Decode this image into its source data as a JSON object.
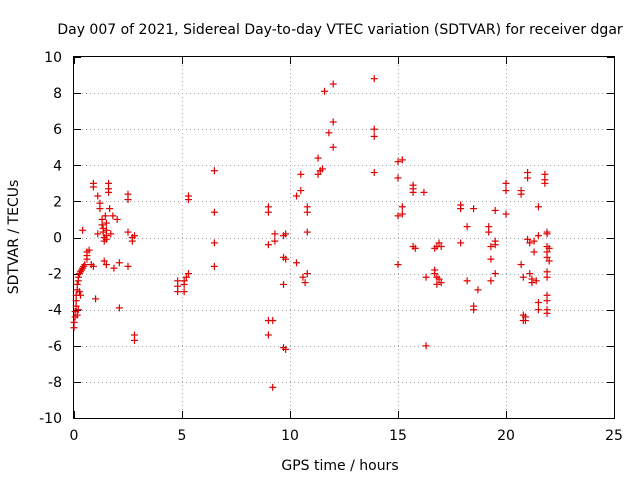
{
  "chart_data": {
    "type": "scatter",
    "title": "Day 007 of 2021, Sidereal Day-to-day VTEC variation (SDTVAR) for receiver dgar",
    "xlabel": "GPS time / hours",
    "ylabel": "SDTVAR / TECUs",
    "xlim": [
      0,
      25
    ],
    "ylim": [
      -10,
      10
    ],
    "xticks": [
      0,
      5,
      10,
      15,
      20,
      25
    ],
    "yticks": [
      -10,
      -8,
      -6,
      -4,
      -2,
      0,
      2,
      4,
      6,
      8,
      10
    ],
    "grid": true,
    "marker": "plus",
    "color": "#e00000",
    "series": [
      {
        "name": "SDTVAR",
        "points": [
          [
            0.0,
            -5.0
          ],
          [
            0.0,
            -4.7
          ],
          [
            0.05,
            -4.4
          ],
          [
            0.05,
            -4.1
          ],
          [
            0.1,
            -3.8
          ],
          [
            0.1,
            -3.5
          ],
          [
            0.1,
            -3.2
          ],
          [
            0.15,
            -2.9
          ],
          [
            0.15,
            -2.6
          ],
          [
            0.2,
            -2.4
          ],
          [
            0.2,
            -2.2
          ],
          [
            0.25,
            -2.0
          ],
          [
            0.3,
            -1.9
          ],
          [
            0.35,
            -1.8
          ],
          [
            0.4,
            -1.7
          ],
          [
            0.45,
            -1.6
          ],
          [
            0.5,
            -1.5
          ],
          [
            0.25,
            -3.0
          ],
          [
            0.3,
            -3.2
          ],
          [
            0.2,
            -4.0
          ],
          [
            0.15,
            -4.3
          ],
          [
            0.4,
            0.4
          ],
          [
            0.6,
            -1.2
          ],
          [
            0.6,
            -1.0
          ],
          [
            0.6,
            -0.8
          ],
          [
            0.7,
            -0.7
          ],
          [
            0.8,
            -1.5
          ],
          [
            0.9,
            3.0
          ],
          [
            0.9,
            2.8
          ],
          [
            0.9,
            -1.6
          ],
          [
            1.0,
            -3.4
          ],
          [
            1.1,
            2.3
          ],
          [
            1.1,
            0.2
          ],
          [
            1.2,
            1.9
          ],
          [
            1.2,
            1.6
          ],
          [
            1.3,
            1.0
          ],
          [
            1.3,
            0.7
          ],
          [
            1.35,
            0.5
          ],
          [
            1.35,
            0.3
          ],
          [
            1.4,
            0.0
          ],
          [
            1.4,
            -0.2
          ],
          [
            1.45,
            1.2
          ],
          [
            1.5,
            0.8
          ],
          [
            1.5,
            0.4
          ],
          [
            1.5,
            0.1
          ],
          [
            1.5,
            -0.1
          ],
          [
            1.4,
            -1.3
          ],
          [
            1.5,
            -1.5
          ],
          [
            1.6,
            3.0
          ],
          [
            1.6,
            2.7
          ],
          [
            1.6,
            2.5
          ],
          [
            1.65,
            1.6
          ],
          [
            1.7,
            0.2
          ],
          [
            1.8,
            1.2
          ],
          [
            1.85,
            -1.7
          ],
          [
            2.0,
            1.0
          ],
          [
            2.1,
            -3.9
          ],
          [
            2.1,
            -1.4
          ],
          [
            2.5,
            2.4
          ],
          [
            2.5,
            2.1
          ],
          [
            2.5,
            0.3
          ],
          [
            2.5,
            -1.6
          ],
          [
            2.7,
            0.0
          ],
          [
            2.7,
            -0.2
          ],
          [
            2.8,
            0.1
          ],
          [
            2.8,
            -5.4
          ],
          [
            2.8,
            -5.7
          ],
          [
            4.8,
            -2.4
          ],
          [
            4.8,
            -2.7
          ],
          [
            4.8,
            -3.0
          ],
          [
            5.1,
            -2.4
          ],
          [
            5.1,
            -2.6
          ],
          [
            5.1,
            -3.0
          ],
          [
            5.2,
            -2.2
          ],
          [
            5.3,
            2.3
          ],
          [
            5.3,
            2.1
          ],
          [
            5.3,
            -2.0
          ],
          [
            6.5,
            3.7
          ],
          [
            6.5,
            1.4
          ],
          [
            6.5,
            -0.3
          ],
          [
            6.5,
            -1.6
          ],
          [
            9.0,
            1.7
          ],
          [
            9.0,
            1.4
          ],
          [
            9.0,
            -0.4
          ],
          [
            9.0,
            -4.6
          ],
          [
            9.0,
            -5.4
          ],
          [
            9.2,
            -4.6
          ],
          [
            9.2,
            -8.3
          ],
          [
            9.3,
            0.2
          ],
          [
            9.3,
            -0.2
          ],
          [
            9.7,
            0.1
          ],
          [
            9.7,
            -1.1
          ],
          [
            9.7,
            -2.6
          ],
          [
            9.7,
            -6.1
          ],
          [
            9.8,
            -6.2
          ],
          [
            9.8,
            0.2
          ],
          [
            9.8,
            -1.2
          ],
          [
            10.3,
            2.3
          ],
          [
            10.3,
            -1.4
          ],
          [
            10.5,
            3.5
          ],
          [
            10.5,
            2.6
          ],
          [
            10.6,
            -2.2
          ],
          [
            10.7,
            -2.5
          ],
          [
            10.8,
            1.7
          ],
          [
            10.8,
            1.4
          ],
          [
            10.8,
            0.3
          ],
          [
            10.8,
            -2.0
          ],
          [
            11.3,
            4.4
          ],
          [
            11.3,
            3.5
          ],
          [
            11.4,
            3.7
          ],
          [
            11.5,
            3.8
          ],
          [
            11.6,
            8.1
          ],
          [
            11.8,
            5.8
          ],
          [
            12.0,
            8.5
          ],
          [
            12.0,
            6.4
          ],
          [
            12.0,
            5.0
          ],
          [
            13.9,
            8.8
          ],
          [
            13.9,
            6.0
          ],
          [
            13.9,
            5.6
          ],
          [
            13.9,
            3.6
          ],
          [
            15.0,
            4.2
          ],
          [
            15.0,
            3.3
          ],
          [
            15.0,
            1.2
          ],
          [
            15.0,
            -1.5
          ],
          [
            15.2,
            4.3
          ],
          [
            15.2,
            1.7
          ],
          [
            15.2,
            1.3
          ],
          [
            15.7,
            2.9
          ],
          [
            15.7,
            2.7
          ],
          [
            15.7,
            2.5
          ],
          [
            15.7,
            -0.5
          ],
          [
            15.8,
            -0.6
          ],
          [
            16.2,
            2.5
          ],
          [
            16.3,
            -6.0
          ],
          [
            16.3,
            -2.2
          ],
          [
            16.7,
            -0.6
          ],
          [
            16.7,
            -1.8
          ],
          [
            16.7,
            -2.0
          ],
          [
            16.8,
            -2.2
          ],
          [
            16.8,
            -0.5
          ],
          [
            16.8,
            -2.6
          ],
          [
            16.9,
            -0.3
          ],
          [
            16.9,
            -2.3
          ],
          [
            17.0,
            -2.5
          ],
          [
            17.0,
            -0.5
          ],
          [
            17.9,
            1.8
          ],
          [
            17.9,
            1.6
          ],
          [
            17.9,
            -0.3
          ],
          [
            18.2,
            0.6
          ],
          [
            18.2,
            -2.4
          ],
          [
            18.5,
            1.6
          ],
          [
            18.5,
            -3.8
          ],
          [
            18.5,
            -4.0
          ],
          [
            18.7,
            -2.9
          ],
          [
            19.2,
            0.6
          ],
          [
            19.2,
            0.3
          ],
          [
            19.3,
            -0.5
          ],
          [
            19.3,
            -1.2
          ],
          [
            19.3,
            -2.4
          ],
          [
            19.5,
            1.5
          ],
          [
            19.5,
            -0.2
          ],
          [
            19.5,
            -0.4
          ],
          [
            19.5,
            -2.0
          ],
          [
            20.0,
            3.0
          ],
          [
            20.0,
            2.6
          ],
          [
            20.0,
            1.3
          ],
          [
            20.7,
            2.6
          ],
          [
            20.7,
            2.4
          ],
          [
            20.7,
            -1.5
          ],
          [
            20.8,
            -2.2
          ],
          [
            20.8,
            -4.3
          ],
          [
            20.8,
            -4.6
          ],
          [
            20.9,
            -4.4
          ],
          [
            20.9,
            -4.6
          ],
          [
            21.0,
            3.6
          ],
          [
            21.0,
            3.3
          ],
          [
            21.0,
            -0.1
          ],
          [
            21.1,
            -0.3
          ],
          [
            21.1,
            -2.0
          ],
          [
            21.2,
            -2.3
          ],
          [
            21.2,
            -2.5
          ],
          [
            21.3,
            -0.2
          ],
          [
            21.3,
            -0.8
          ],
          [
            21.4,
            -2.4
          ],
          [
            21.5,
            1.7
          ],
          [
            21.5,
            0.1
          ],
          [
            21.5,
            -3.6
          ],
          [
            21.5,
            -4.0
          ],
          [
            21.8,
            3.5
          ],
          [
            21.8,
            3.2
          ],
          [
            21.8,
            3.0
          ],
          [
            21.9,
            0.3
          ],
          [
            21.9,
            0.2
          ],
          [
            21.9,
            -0.5
          ],
          [
            21.9,
            -0.8
          ],
          [
            21.9,
            -1.1
          ],
          [
            21.9,
            -1.9
          ],
          [
            21.9,
            -2.2
          ],
          [
            21.9,
            -3.2
          ],
          [
            21.9,
            -3.5
          ],
          [
            21.9,
            -4.0
          ],
          [
            21.9,
            -4.2
          ],
          [
            22.0,
            -0.6
          ],
          [
            22.0,
            -1.3
          ]
        ]
      }
    ]
  }
}
